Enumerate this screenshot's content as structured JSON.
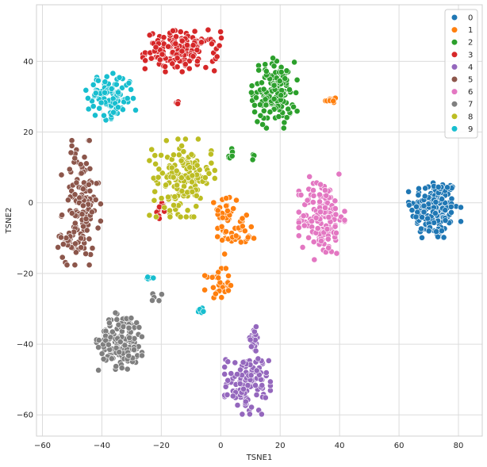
{
  "chart_data": {
    "type": "scatter",
    "title": "",
    "xlabel": "TSNE1",
    "ylabel": "TSNE2",
    "xlim": [
      -62,
      88
    ],
    "ylim": [
      -66,
      56
    ],
    "xticks": [
      -60,
      -40,
      -20,
      0,
      20,
      40,
      60,
      80
    ],
    "yticks": [
      -60,
      -40,
      -20,
      0,
      20,
      40
    ],
    "grid": true,
    "legend_position": "top-right",
    "series": [
      {
        "name": "0",
        "color": "#1f77b4",
        "clusters": [
          {
            "cx": 72,
            "cy": -2,
            "sx": 4,
            "sy": 4.5,
            "n": 170
          }
        ]
      },
      {
        "name": "1",
        "color": "#ff7f0e",
        "clusters": [
          {
            "cx": 2,
            "cy": -3,
            "sx": 2,
            "sy": 3,
            "n": 30
          },
          {
            "cx": 6,
            "cy": -9,
            "sx": 3,
            "sy": 2.5,
            "n": 30
          },
          {
            "cx": -1,
            "cy": -23,
            "sx": 2,
            "sy": 2,
            "n": 30
          },
          {
            "cx": 37,
            "cy": 29,
            "sx": 1,
            "sy": 0.6,
            "n": 12
          }
        ]
      },
      {
        "name": "2",
        "color": "#2ca02c",
        "clusters": [
          {
            "cx": 18,
            "cy": 31,
            "sx": 3.5,
            "sy": 4.5,
            "n": 140
          },
          {
            "cx": 3,
            "cy": 13.5,
            "sx": 0.6,
            "sy": 1,
            "n": 6
          },
          {
            "cx": 11,
            "cy": 13.5,
            "sx": 0.3,
            "sy": 0.6,
            "n": 3
          }
        ]
      },
      {
        "name": "3",
        "color": "#d62728",
        "clusters": [
          {
            "cx": -13,
            "cy": 43,
            "sx": 6,
            "sy": 2.7,
            "n": 150
          },
          {
            "cx": -15,
            "cy": 28.5,
            "sx": 0.5,
            "sy": 0.4,
            "n": 5
          },
          {
            "cx": -20,
            "cy": -2.5,
            "sx": 1,
            "sy": 1.2,
            "n": 9
          }
        ]
      },
      {
        "name": "4",
        "color": "#9467bd",
        "clusters": [
          {
            "cx": 9,
            "cy": -51,
            "sx": 3.5,
            "sy": 4,
            "n": 120
          },
          {
            "cx": 11,
            "cy": -39,
            "sx": 1.2,
            "sy": 1.8,
            "n": 20
          }
        ]
      },
      {
        "name": "5",
        "color": "#8c564b",
        "clusters": [
          {
            "cx": -47,
            "cy": 0,
            "sx": 3,
            "sy": 8,
            "n": 130
          },
          {
            "cx": -51,
            "cy": -11,
            "sx": 1.8,
            "sy": 1.5,
            "n": 25
          }
        ]
      },
      {
        "name": "6",
        "color": "#e377c2",
        "clusters": [
          {
            "cx": 34,
            "cy": -4,
            "sx": 3.5,
            "sy": 5.5,
            "n": 150
          }
        ]
      },
      {
        "name": "7",
        "color": "#7f7f7f",
        "clusters": [
          {
            "cx": -33,
            "cy": -39,
            "sx": 4,
            "sy": 3.8,
            "n": 150
          },
          {
            "cx": -22,
            "cy": -27.5,
            "sx": 1.5,
            "sy": 0.8,
            "n": 5
          }
        ]
      },
      {
        "name": "8",
        "color": "#bcbd22",
        "clusters": [
          {
            "cx": -13,
            "cy": 7,
            "sx": 5,
            "sy": 5,
            "n": 160
          }
        ]
      },
      {
        "name": "9",
        "color": "#17becf",
        "clusters": [
          {
            "cx": -37,
            "cy": 30,
            "sx": 3.8,
            "sy": 3,
            "n": 110
          },
          {
            "cx": -7,
            "cy": -30,
            "sx": 1,
            "sy": 0.8,
            "n": 9
          },
          {
            "cx": -24,
            "cy": -21.5,
            "sx": 0.6,
            "sy": 0.8,
            "n": 5
          }
        ]
      }
    ]
  }
}
